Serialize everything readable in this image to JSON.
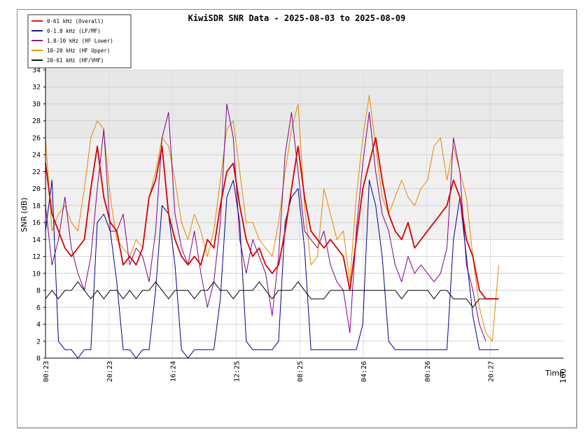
{
  "chart_data": {
    "type": "line",
    "title": "KiwiSDR SNR Data - 2025-08-03 to 2025-08-09",
    "xlabel": "Time",
    "ylabel": "SNR (dB)",
    "ylim": [
      0,
      34
    ],
    "yticks": [
      0,
      2,
      4,
      6,
      8,
      10,
      12,
      14,
      16,
      18,
      20,
      22,
      24,
      26,
      28,
      30,
      32,
      34
    ],
    "x_tick_labels": [
      "00:23",
      "20:23",
      "16:24",
      "12:25",
      "08:25",
      "04:26",
      "00:26",
      "20:27"
    ],
    "x_end_tick_label": "160",
    "grid": true,
    "legend_position": "top-left",
    "colors": {
      "overall": "#d40000",
      "lf_mf": "#00008b",
      "hf_lower": "#800080",
      "hf_upper": "#e08a00",
      "hf_vhf": "#000000",
      "plot_band_light": "#f0f0f0",
      "plot_band_dark": "#e8e8e8"
    },
    "x": [
      0,
      2,
      4,
      6,
      8,
      10,
      12,
      14,
      16,
      18,
      20,
      22,
      24,
      26,
      28,
      30,
      32,
      34,
      36,
      38,
      40,
      42,
      44,
      46,
      48,
      50,
      52,
      54,
      56,
      58,
      60,
      62,
      64,
      66,
      68,
      70,
      72,
      74,
      76,
      78,
      80,
      82,
      84,
      86,
      88,
      90,
      92,
      94,
      96,
      98,
      100,
      102,
      104,
      106,
      108,
      110,
      112,
      114,
      116,
      118,
      120,
      122,
      124,
      126,
      128,
      130,
      132,
      134,
      136,
      138,
      140,
      142,
      144,
      146,
      148,
      150,
      152,
      154,
      156,
      158,
      160
    ],
    "series": [
      {
        "name": "0-61 kHz (Overall)",
        "key": "overall",
        "values": [
          23,
          17,
          15,
          13,
          12,
          13,
          14,
          20,
          25,
          19,
          16,
          15,
          11,
          12,
          11,
          13,
          19,
          21,
          25,
          17,
          14,
          12,
          11,
          12,
          11,
          14,
          13,
          18,
          22,
          23,
          18,
          14,
          12,
          13,
          11,
          10,
          11,
          15,
          20,
          25,
          19,
          15,
          14,
          13,
          14,
          13,
          12,
          8,
          14,
          20,
          23,
          26,
          21,
          17,
          15,
          14,
          16,
          13,
          14,
          15,
          16,
          17,
          18,
          21,
          19,
          14,
          12,
          8,
          7,
          7,
          7,
          null,
          null,
          null,
          null,
          null,
          null,
          null,
          null,
          null,
          null
        ]
      },
      {
        "name": "0-1.8 kHz (LF/MF)",
        "key": "lf_mf",
        "values": [
          15,
          21,
          2,
          1,
          1,
          0,
          1,
          1,
          16,
          17,
          15,
          9,
          1,
          1,
          0,
          1,
          1,
          8,
          18,
          17,
          11,
          1,
          0,
          1,
          1,
          1,
          1,
          7,
          19,
          21,
          16,
          2,
          1,
          1,
          1,
          1,
          2,
          16,
          19,
          20,
          13,
          1,
          1,
          1,
          1,
          1,
          1,
          1,
          1,
          4,
          21,
          18,
          12,
          2,
          1,
          1,
          1,
          1,
          1,
          1,
          1,
          1,
          1,
          14,
          19,
          12,
          5,
          1,
          1,
          1,
          1,
          null,
          null,
          null,
          null,
          null,
          null,
          null,
          null,
          null,
          null
        ]
      },
      {
        "name": "1.8-10 kHz (HF Lower)",
        "key": "hf_lower",
        "values": [
          18,
          11,
          14,
          19,
          13,
          10,
          8,
          12,
          20,
          27,
          15,
          15,
          17,
          11,
          13,
          12,
          9,
          15,
          26,
          29,
          17,
          13,
          11,
          15,
          10,
          6,
          9,
          16,
          30,
          26,
          14,
          10,
          14,
          12,
          10,
          5,
          12,
          24,
          29,
          22,
          15,
          14,
          13,
          15,
          11,
          9,
          8,
          3,
          15,
          23,
          29,
          22,
          17,
          15,
          11,
          9,
          12,
          10,
          11,
          10,
          9,
          10,
          13,
          26,
          22,
          11,
          8,
          4,
          2,
          null,
          null,
          null,
          null,
          null,
          null,
          null,
          null,
          null,
          null,
          null,
          null
        ]
      },
      {
        "name": "10-20 kHz (HF Upper)",
        "key": "hf_upper",
        "values": [
          26,
          15,
          17,
          18,
          16,
          15,
          20,
          26,
          28,
          27,
          19,
          14,
          13,
          12,
          14,
          13,
          19,
          22,
          26,
          25,
          21,
          16,
          14,
          17,
          15,
          12,
          15,
          21,
          27,
          28,
          22,
          16,
          16,
          14,
          13,
          12,
          16,
          22,
          27,
          30,
          18,
          11,
          12,
          20,
          17,
          14,
          15,
          9,
          19,
          26,
          31,
          25,
          19,
          17,
          19,
          21,
          19,
          18,
          20,
          21,
          25,
          26,
          21,
          25,
          22,
          19,
          12,
          6,
          3,
          2,
          11,
          null,
          null,
          null,
          null,
          null,
          null,
          null,
          null,
          null,
          null
        ]
      },
      {
        "name": "20-61 kHz (HF/VHF)",
        "key": "hf_vhf",
        "values": [
          7,
          8,
          7,
          8,
          8,
          9,
          8,
          7,
          8,
          7,
          8,
          8,
          7,
          8,
          7,
          8,
          8,
          9,
          8,
          7,
          8,
          8,
          8,
          7,
          8,
          8,
          9,
          8,
          8,
          7,
          8,
          8,
          8,
          9,
          8,
          7,
          8,
          8,
          8,
          9,
          8,
          7,
          7,
          7,
          8,
          8,
          8,
          8,
          8,
          8,
          8,
          8,
          8,
          8,
          8,
          7,
          8,
          8,
          8,
          8,
          7,
          8,
          8,
          7,
          7,
          7,
          6,
          7,
          7,
          7,
          7,
          null,
          null,
          null,
          null,
          null,
          null,
          null,
          null,
          null,
          null
        ]
      }
    ]
  }
}
